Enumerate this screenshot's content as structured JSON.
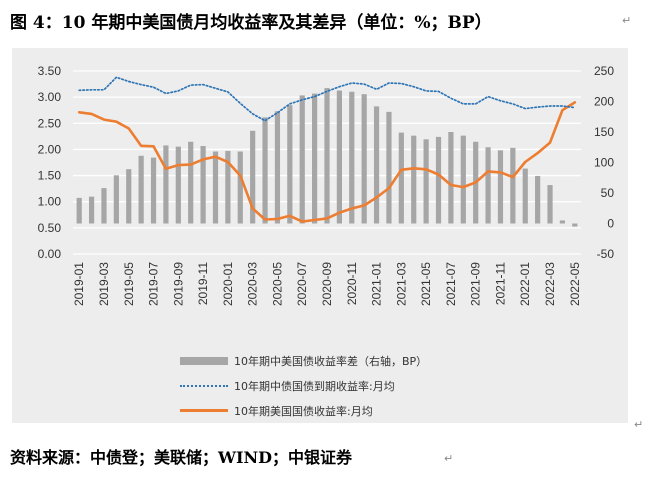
{
  "title": "图 4：10 年期中美国债月均收益率及其差异（单位：%；BP）",
  "source": "资料来源：中债登；美联储；WIND；中银证券",
  "colors": {
    "bar": "#a6a6a6",
    "china_line": "#2e75b6",
    "us_line": "#ed7d31",
    "plot_bg": "#ededed",
    "grid": "#ffffff"
  },
  "chart_data": {
    "type": "bar",
    "categories": [
      "2019-01",
      "2019-02",
      "2019-03",
      "2019-04",
      "2019-05",
      "2019-06",
      "2019-07",
      "2019-08",
      "2019-09",
      "2019-10",
      "2019-11",
      "2019-12",
      "2020-01",
      "2020-02",
      "2020-03",
      "2020-04",
      "2020-05",
      "2020-06",
      "2020-07",
      "2020-08",
      "2020-09",
      "2020-10",
      "2020-11",
      "2020-12",
      "2021-01",
      "2021-02",
      "2021-03",
      "2021-04",
      "2021-05",
      "2021-06",
      "2021-07",
      "2021-08",
      "2021-09",
      "2021-10",
      "2021-11",
      "2021-12",
      "2022-01",
      "2022-02",
      "2022-03",
      "2022-04",
      "2022-05"
    ],
    "x_tick_labels": [
      "2019-01",
      "2019-03",
      "2019-05",
      "2019-07",
      "2019-09",
      "2019-11",
      "2020-01",
      "2020-03",
      "2020-05",
      "2020-07",
      "2020-09",
      "2020-11",
      "2021-01",
      "2021-03",
      "2021-05",
      "2021-07",
      "2021-09",
      "2021-11",
      "2022-01",
      "2022-03",
      "2022-05"
    ],
    "y_left": {
      "range": [
        0,
        3.5
      ],
      "ticks": [
        "0.00",
        "0.50",
        "1.00",
        "1.50",
        "2.00",
        "2.50",
        "3.00",
        "3.50"
      ]
    },
    "y_right": {
      "range": [
        -50,
        250
      ],
      "ticks": [
        "-50",
        "0",
        "50",
        "100",
        "150",
        "200",
        "250"
      ]
    },
    "grid": true,
    "legend_position": "bottom",
    "series": [
      {
        "name": "10年期中美国债收益率差（右轴，BP）",
        "type": "bar",
        "axis": "right",
        "values": [
          42,
          44,
          58,
          79,
          89,
          111,
          108,
          128,
          126,
          134,
          127,
          118,
          119,
          118,
          152,
          174,
          184,
          194,
          210,
          213,
          222,
          218,
          216,
          212,
          192,
          183,
          149,
          144,
          138,
          142,
          150,
          144,
          134,
          125,
          120,
          124,
          90,
          78,
          63,
          5,
          -5
        ]
      },
      {
        "name": "10年期中债国债到期收益率:月均",
        "type": "line",
        "axis": "left",
        "values": [
          3.13,
          3.14,
          3.14,
          3.38,
          3.3,
          3.24,
          3.19,
          3.07,
          3.12,
          3.23,
          3.24,
          3.17,
          3.1,
          2.88,
          2.68,
          2.55,
          2.7,
          2.87,
          2.95,
          3.01,
          3.11,
          3.2,
          3.27,
          3.25,
          3.15,
          3.27,
          3.26,
          3.2,
          3.12,
          3.11,
          2.98,
          2.87,
          2.87,
          3.01,
          2.93,
          2.87,
          2.78,
          2.81,
          2.83,
          2.83,
          2.8
        ]
      },
      {
        "name": "10年期美国国债收益率:月均",
        "type": "line",
        "axis": "left",
        "values": [
          2.71,
          2.68,
          2.57,
          2.53,
          2.4,
          2.07,
          2.06,
          1.63,
          1.7,
          1.71,
          1.81,
          1.86,
          1.76,
          1.5,
          0.87,
          0.66,
          0.67,
          0.73,
          0.62,
          0.65,
          0.68,
          0.79,
          0.87,
          0.93,
          1.08,
          1.26,
          1.61,
          1.64,
          1.62,
          1.52,
          1.32,
          1.28,
          1.37,
          1.58,
          1.56,
          1.47,
          1.76,
          1.93,
          2.13,
          2.75,
          2.9
        ]
      }
    ]
  }
}
